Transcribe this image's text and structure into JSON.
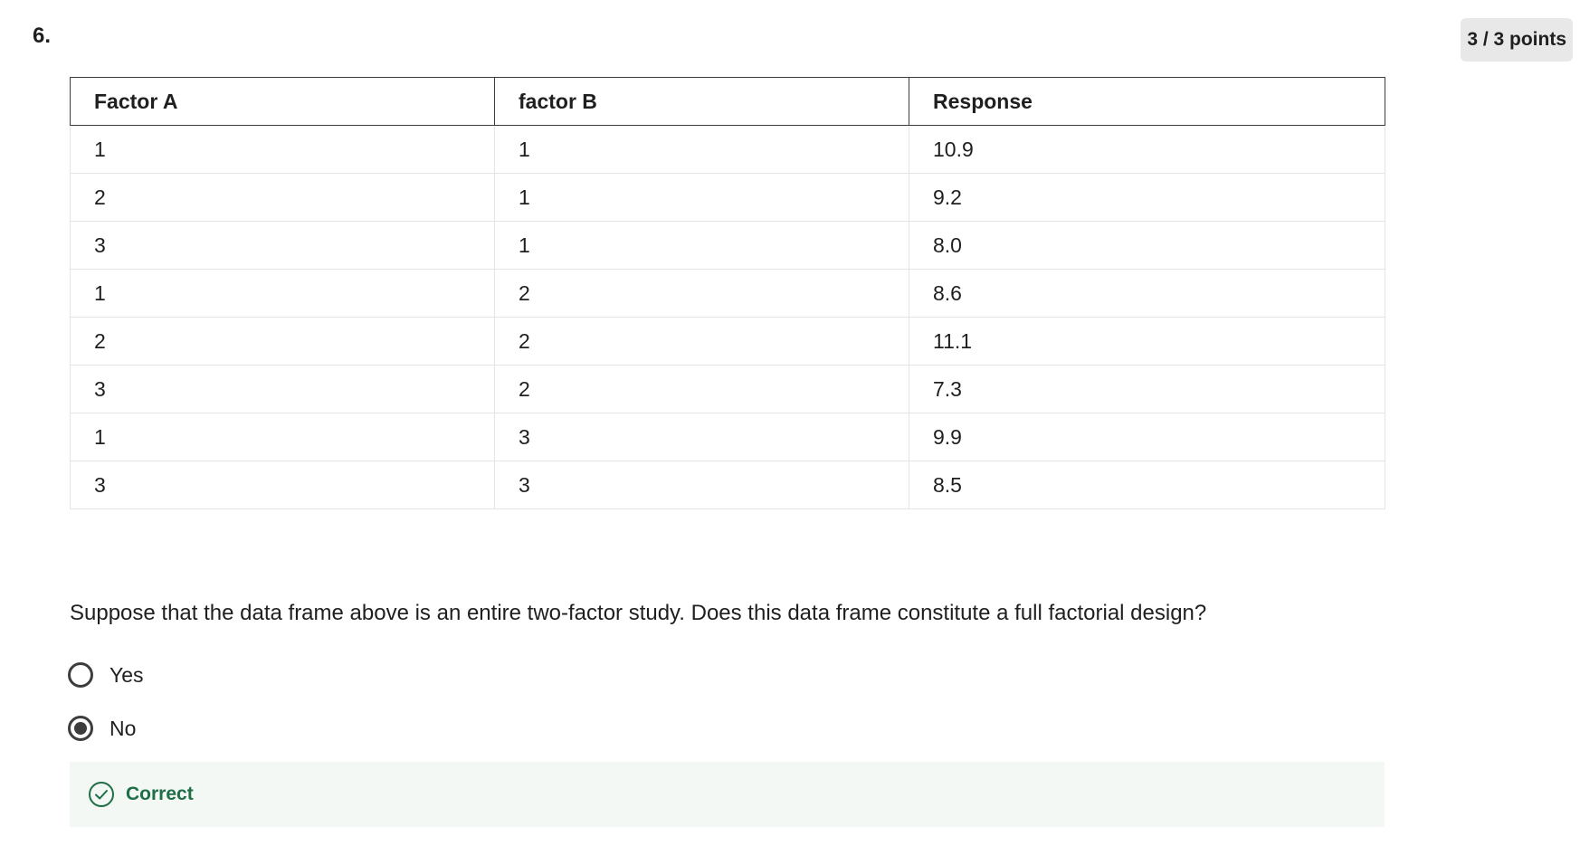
{
  "question": {
    "number": "6.",
    "points": "3 / 3 points",
    "text": "Suppose that the data frame above is an entire two-factor study. Does this data frame constitute a full factorial design?"
  },
  "table": {
    "headers": [
      "Factor A",
      "factor B",
      "Response"
    ],
    "rows": [
      [
        "1",
        "1",
        "10.9"
      ],
      [
        "2",
        "1",
        "9.2"
      ],
      [
        "3",
        "1",
        "8.0"
      ],
      [
        "1",
        "2",
        "8.6"
      ],
      [
        "2",
        "2",
        "11.1"
      ],
      [
        "3",
        "2",
        "7.3"
      ],
      [
        "1",
        "3",
        "9.9"
      ],
      [
        "3",
        "3",
        "8.5"
      ]
    ]
  },
  "options": [
    {
      "label": "Yes",
      "selected": false
    },
    {
      "label": "No",
      "selected": true
    }
  ],
  "feedback": {
    "label": "Correct",
    "icon": "check-circle-icon",
    "color": "#1e6e46"
  }
}
